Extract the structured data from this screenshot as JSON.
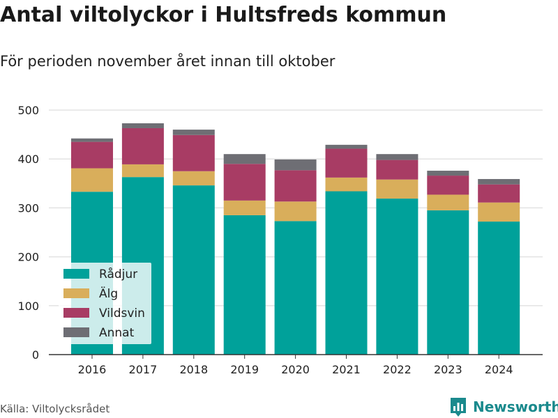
{
  "title": "Antal viltolyckor i Hultsfreds kommun",
  "subtitle": "För perioden november året innan till oktober",
  "source": "Källa: Viltolycksrådet",
  "brand": {
    "name": "Newsworthy",
    "icon": "bar-chart-logo-icon",
    "color": "#1b8a8d"
  },
  "chart_data": {
    "type": "bar",
    "stacked": true,
    "categories": [
      "2016",
      "2017",
      "2018",
      "2019",
      "2020",
      "2021",
      "2022",
      "2023",
      "2024"
    ],
    "series": [
      {
        "name": "Rådjur",
        "color": "#00a19a",
        "values": [
          333,
          363,
          346,
          285,
          273,
          334,
          319,
          295,
          272
        ]
      },
      {
        "name": "Älg",
        "color": "#d9ae5b",
        "values": [
          48,
          26,
          29,
          30,
          40,
          28,
          39,
          32,
          39
        ]
      },
      {
        "name": "Vildsvin",
        "color": "#a83c64",
        "values": [
          54,
          74,
          74,
          75,
          64,
          59,
          40,
          39,
          37
        ]
      },
      {
        "name": "Annat",
        "color": "#6e6e74",
        "values": [
          7,
          10,
          11,
          20,
          22,
          8,
          12,
          10,
          11
        ]
      }
    ],
    "yticks": [
      0,
      100,
      200,
      300,
      400,
      500
    ],
    "ylim": [
      0,
      500
    ],
    "grid": true,
    "legend": "bottom-left inside plot"
  }
}
